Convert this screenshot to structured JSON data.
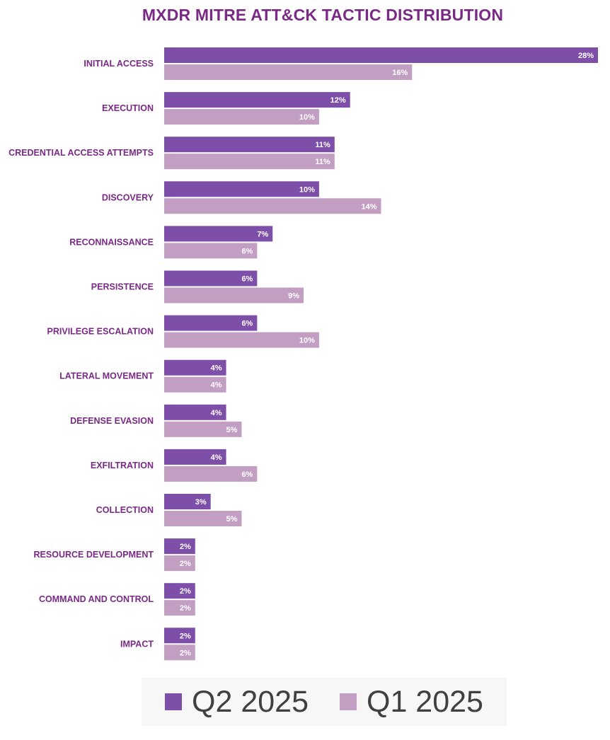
{
  "colors": {
    "q2": "#7e4fa8",
    "q1": "#c29ec3",
    "title": "#7a2a86",
    "label": "#7a2a86"
  },
  "chart_data": {
    "type": "bar",
    "orientation": "horizontal",
    "title": "MXDR MITRE ATT&CK TACTIC DISTRIBUTION",
    "categories": [
      "INITIAL ACCESS",
      "EXECUTION",
      "CREDENTIAL ACCESS ATTEMPTS",
      "DISCOVERY",
      "RECONNAISSANCE",
      "PERSISTENCE",
      "PRIVILEGE ESCALATION",
      "LATERAL MOVEMENT",
      "DEFENSE EVASION",
      "EXFILTRATION",
      "COLLECTION",
      "RESOURCE DEVELOPMENT",
      "COMMAND AND CONTROL",
      "IMPACT"
    ],
    "series": [
      {
        "name": "Q2 2025",
        "values": [
          28,
          12,
          11,
          10,
          7,
          6,
          6,
          4,
          4,
          4,
          3,
          2,
          2,
          2
        ],
        "labels": [
          "28%",
          "12%",
          "11%",
          "10%",
          "7%",
          "6%",
          "6%",
          "4%",
          "4%",
          "4%",
          "3%",
          "2%",
          "2%",
          "2%"
        ]
      },
      {
        "name": "Q1 2025",
        "values": [
          16,
          10,
          11,
          14,
          6,
          9,
          10,
          4,
          5,
          6,
          5,
          2,
          2,
          2
        ],
        "labels": [
          "16%",
          "10%",
          "11%",
          "14%",
          "6%",
          "9%",
          "10%",
          "4%",
          "5%",
          "6%",
          "5%",
          "2%",
          "2%",
          "2%"
        ]
      }
    ],
    "xlim": [
      0,
      28
    ],
    "grid": false,
    "legend_position": "bottom"
  }
}
